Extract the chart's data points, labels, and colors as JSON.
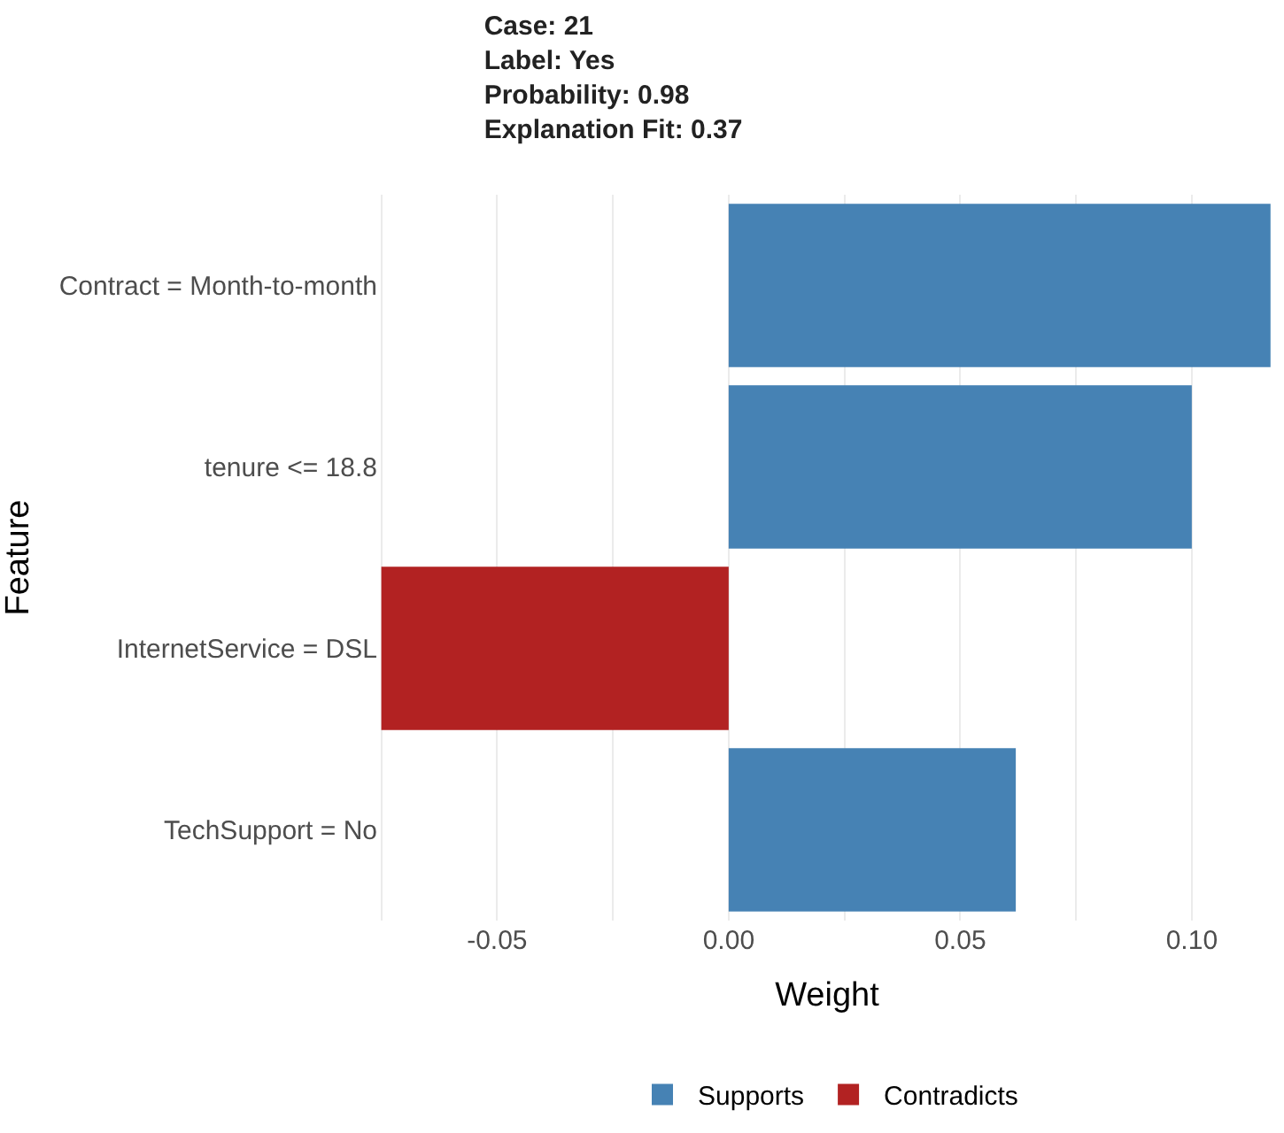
{
  "chart_data": {
    "type": "bar",
    "orientation": "horizontal",
    "title": "Case: 21\nLabel: Yes\nProbability: 0.98\nExplanation Fit: 0.37",
    "xlabel": "Weight",
    "ylabel": "Feature",
    "categories": [
      "Contract = Month-to-month",
      "tenure <= 18.8",
      "InternetService = DSL",
      "TechSupport = No"
    ],
    "series": [
      {
        "name": "Supports",
        "color": "#4682b4",
        "values": [
          0.117,
          0.1,
          null,
          0.062
        ]
      },
      {
        "name": "Contradicts",
        "color": "#b22222",
        "values": [
          null,
          null,
          -0.075,
          null
        ]
      }
    ],
    "xlim": [
      -0.0755,
      0.118
    ],
    "xticks": [
      {
        "value": -0.075,
        "label": null
      },
      -0.05,
      {
        "value": -0.025,
        "label": null
      },
      {
        "value": 0,
        "label": "0.00"
      },
      {
        "value": 0.025,
        "label": null
      },
      0.05,
      {
        "value": 0.075,
        "label": null
      },
      {
        "value": 0.1,
        "label": "0.10"
      }
    ],
    "grid": "x",
    "legend": "bottom"
  }
}
